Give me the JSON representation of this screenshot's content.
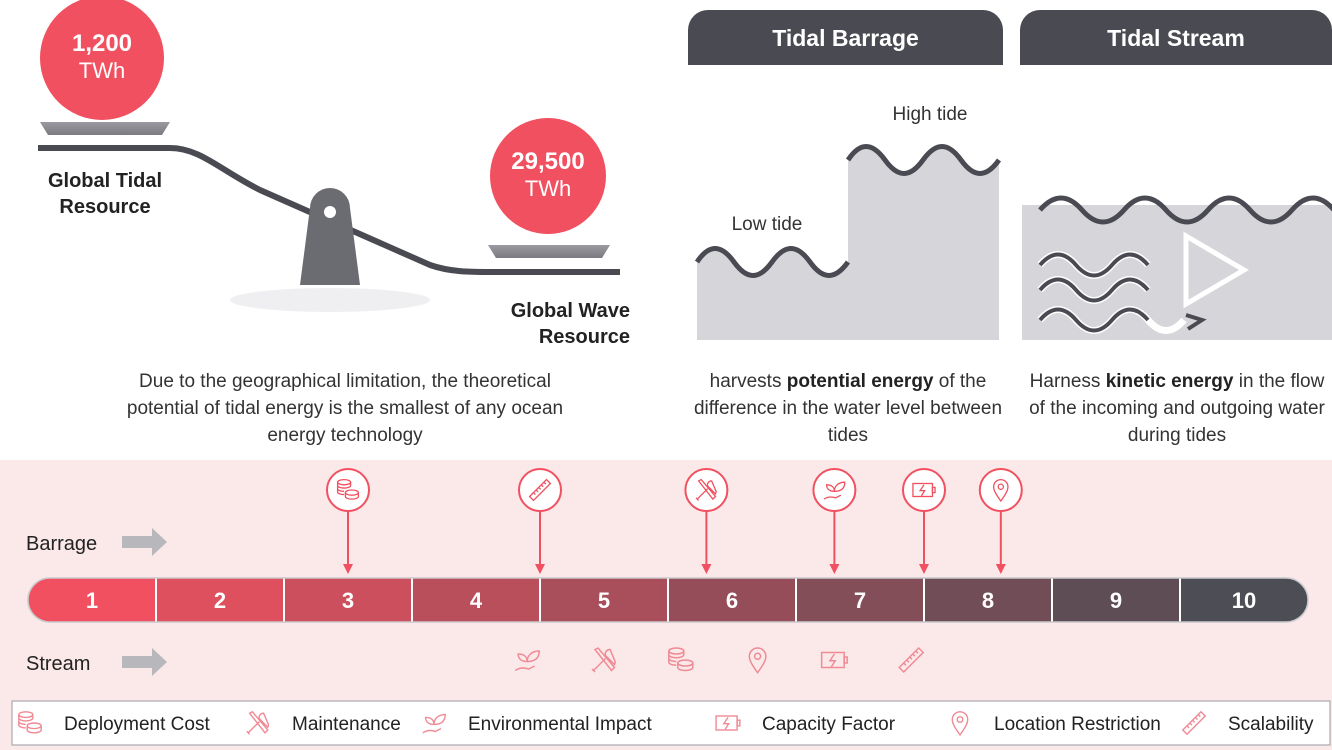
{
  "tidal_resource": {
    "value": "1,200",
    "unit": "TWh",
    "label": "Global Tidal Resource"
  },
  "wave_resource": {
    "value": "29,500",
    "unit": "TWh",
    "label": "Global Wave Resource"
  },
  "resource_note": "Due to the geographical limitation, the theoretical potential of tidal energy is the smallest of any ocean energy technology",
  "panels": [
    {
      "title": "Tidal Barrage",
      "high_label": "High tide",
      "low_label": "Low tide",
      "description": [
        {
          "text": "harvests "
        },
        {
          "text": "potential energy",
          "bold": true
        },
        {
          "text": " of the difference in the water level between tides"
        }
      ]
    },
    {
      "title": "Tidal Stream",
      "description": [
        {
          "text": "Harness "
        },
        {
          "text": "kinetic energy",
          "bold": true
        },
        {
          "text": " in the flow of the incoming and outgoing water during tides"
        }
      ]
    }
  ],
  "ratings": {
    "rows": [
      "Barrage",
      "Stream"
    ],
    "levels": [
      1,
      2,
      3,
      4,
      5,
      6,
      7,
      8,
      9,
      10
    ],
    "criteria": [
      {
        "name": "Deployment Cost",
        "values": [
          3,
          5.6
        ]
      },
      {
        "name": "Maintenance",
        "values": [
          5.8,
          5.0
        ]
      },
      {
        "name": "Environmental Impact",
        "values": [
          6.8,
          4.4
        ]
      },
      {
        "name": "Capacity Factor",
        "values": [
          7.5,
          6.8
        ]
      },
      {
        "name": "Location Restriction",
        "values": [
          8.1,
          6.2
        ]
      },
      {
        "name": "Scalability",
        "values": [
          4.5,
          7.4
        ]
      }
    ]
  }
}
